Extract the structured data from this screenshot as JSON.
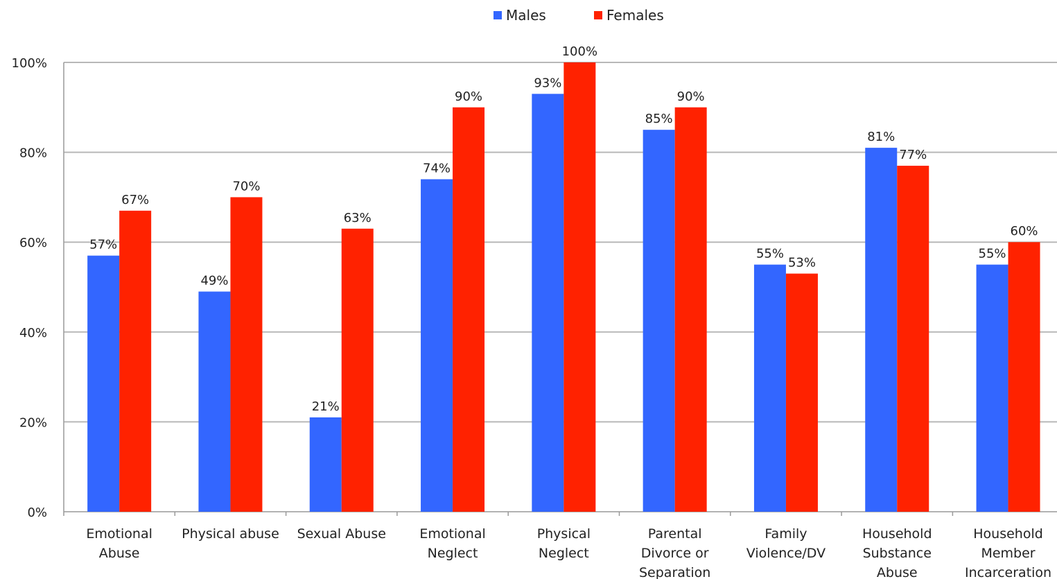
{
  "chart_data": {
    "type": "bar",
    "title": "",
    "xlabel": "",
    "ylabel": "",
    "ylim": [
      0,
      100
    ],
    "yticks": [
      "0%",
      "20%",
      "40%",
      "60%",
      "80%",
      "100%"
    ],
    "ytick_values": [
      0,
      20,
      40,
      60,
      80,
      100
    ],
    "grid": true,
    "legend_position": "top-center",
    "categories": [
      [
        "Emotional",
        "Abuse"
      ],
      [
        "Physical abuse"
      ],
      [
        "Sexual Abuse"
      ],
      [
        "Emotional",
        "Neglect"
      ],
      [
        "Physical",
        "Neglect"
      ],
      [
        "Parental",
        "Divorce or",
        "Separation"
      ],
      [
        "Family",
        "Violence/DV"
      ],
      [
        "Household",
        "Substance",
        "Abuse"
      ],
      [
        "Household",
        "Member",
        "Incarceration"
      ]
    ],
    "series": [
      {
        "name": "Males",
        "color": "#3366ff",
        "values": [
          57,
          49,
          21,
          74,
          93,
          85,
          55,
          81,
          55
        ],
        "labels": [
          "57%",
          "49%",
          "21%",
          "74%",
          "93%",
          "85%",
          "55%",
          "81%",
          "55%"
        ]
      },
      {
        "name": "Females",
        "color": "#ff2200",
        "values": [
          67,
          70,
          63,
          90,
          100,
          90,
          53,
          77,
          60
        ],
        "labels": [
          "67%",
          "70%",
          "63%",
          "90%",
          "100%",
          "90%",
          "53%",
          "77%",
          "60%"
        ]
      }
    ]
  }
}
